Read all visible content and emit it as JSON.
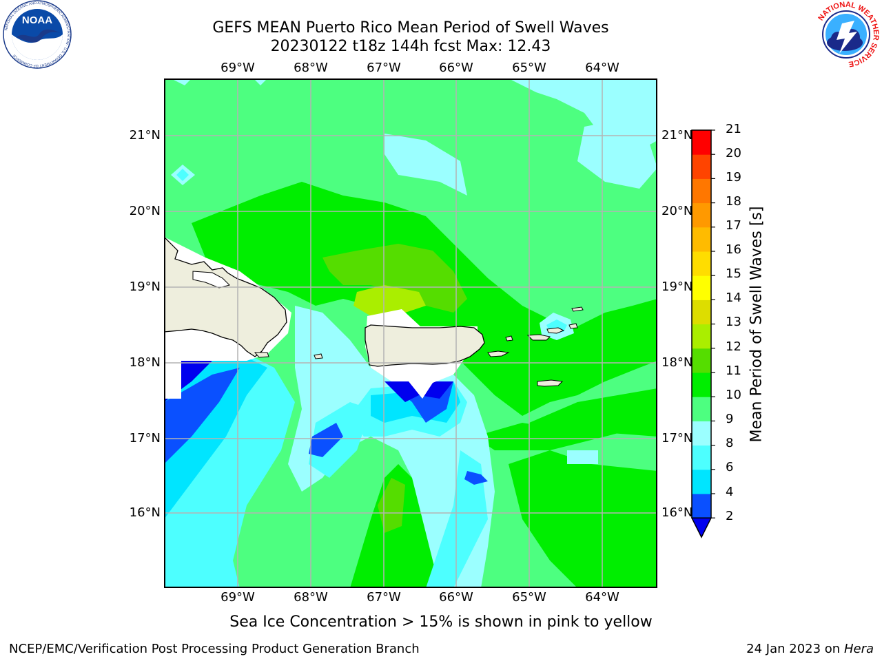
{
  "title": {
    "line1": "GEFS MEAN Puerto Rico Mean Period of Swell Waves",
    "line2": "20230122 t18z 144h fcst   Max: 12.43"
  },
  "logos": {
    "noaa": {
      "text": "NOAA",
      "ring_text": "NATIONAL OCEANIC AND ATMOSPHERIC ADMINISTRATION · U.S. DEPARTMENT OF COMMERCE"
    },
    "nws": {
      "ring_text": "NATIONAL WEATHER SERVICE"
    }
  },
  "axes": {
    "lon_labels": [
      "69°W",
      "68°W",
      "67°W",
      "66°W",
      "65°W",
      "64°W"
    ],
    "lat_labels": [
      "21°N",
      "20°N",
      "19°N",
      "18°N",
      "17°N",
      "16°N"
    ],
    "lon_values": [
      -69,
      -68,
      -67,
      -66,
      -65,
      -64
    ],
    "lat_values": [
      21,
      20,
      19,
      18,
      17,
      16
    ],
    "lon_range": [
      -70.0,
      -63.25
    ],
    "lat_range": [
      15.0,
      21.75
    ],
    "grid": true
  },
  "colorbar": {
    "label": "Mean Period of Swell Waves [s]",
    "ticks": [
      "2",
      "4",
      "6",
      "8",
      "9",
      "10",
      "11",
      "12",
      "13",
      "14",
      "15",
      "16",
      "17",
      "18",
      "19",
      "20",
      "21"
    ],
    "colors": [
      "#0a50ff",
      "#00e5ff",
      "#4dffff",
      "#9bffff",
      "#4dff80",
      "#00ee00",
      "#55dd00",
      "#aaee00",
      "#dddd00",
      "#ffff00",
      "#ffdd00",
      "#ffbb00",
      "#ff9900",
      "#ff7700",
      "#ff4400",
      "#ff0000"
    ],
    "under_color": "#0000ee",
    "extend": "min"
  },
  "colors": {
    "land": "#eeeedd",
    "mask": "#ffffff"
  },
  "footnote": "Sea Ice Concentration > 15% is shown in pink to yellow",
  "footer": {
    "left": "NCEP/EMC/Verification Post Processing Product Generation Branch",
    "right_prefix": "24 Jan 2023 on ",
    "right_italic": "Hera"
  }
}
